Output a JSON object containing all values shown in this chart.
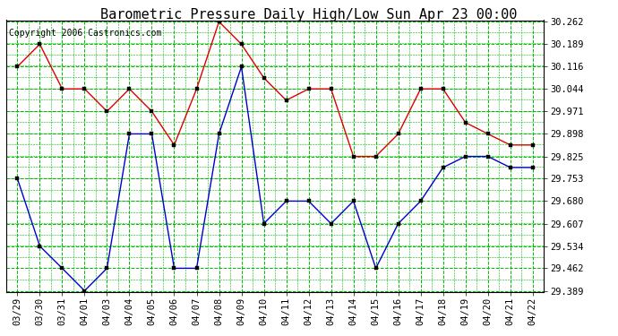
{
  "title": "Barometric Pressure Daily High/Low Sun Apr 23 00:00",
  "copyright": "Copyright 2006 Castronics.com",
  "labels": [
    "03/29",
    "03/30",
    "03/31",
    "04/01",
    "04/03",
    "04/04",
    "04/05",
    "04/06",
    "04/07",
    "04/08",
    "04/09",
    "04/10",
    "04/11",
    "04/12",
    "04/13",
    "04/14",
    "04/15",
    "04/16",
    "04/17",
    "04/18",
    "04/19",
    "04/20",
    "04/21",
    "04/22"
  ],
  "high": [
    30.116,
    30.189,
    30.044,
    30.044,
    29.971,
    30.044,
    29.971,
    29.862,
    30.044,
    30.262,
    30.189,
    30.08,
    30.007,
    30.044,
    30.044,
    29.825,
    29.825,
    29.898,
    30.044,
    30.044,
    29.935,
    29.898,
    29.862,
    29.862
  ],
  "low": [
    29.753,
    29.534,
    29.462,
    29.389,
    29.462,
    29.898,
    29.898,
    29.462,
    29.462,
    29.898,
    30.116,
    29.607,
    29.68,
    29.68,
    29.607,
    29.68,
    29.462,
    29.607,
    29.68,
    29.789,
    29.825,
    29.825,
    29.789,
    29.789
  ],
  "ymin": 29.389,
  "ymax": 30.262,
  "yticks": [
    29.389,
    29.462,
    29.534,
    29.607,
    29.68,
    29.753,
    29.825,
    29.898,
    29.971,
    30.044,
    30.116,
    30.189,
    30.262
  ],
  "high_color": "#dd0000",
  "low_color": "#0000cc",
  "bg_color": "#ffffff",
  "plot_bg": "#ffffff",
  "grid_major_color": "#00bb00",
  "grid_minor_color": "#00bb00",
  "title_fontsize": 11,
  "copyright_fontsize": 7,
  "tick_fontsize": 7.5
}
